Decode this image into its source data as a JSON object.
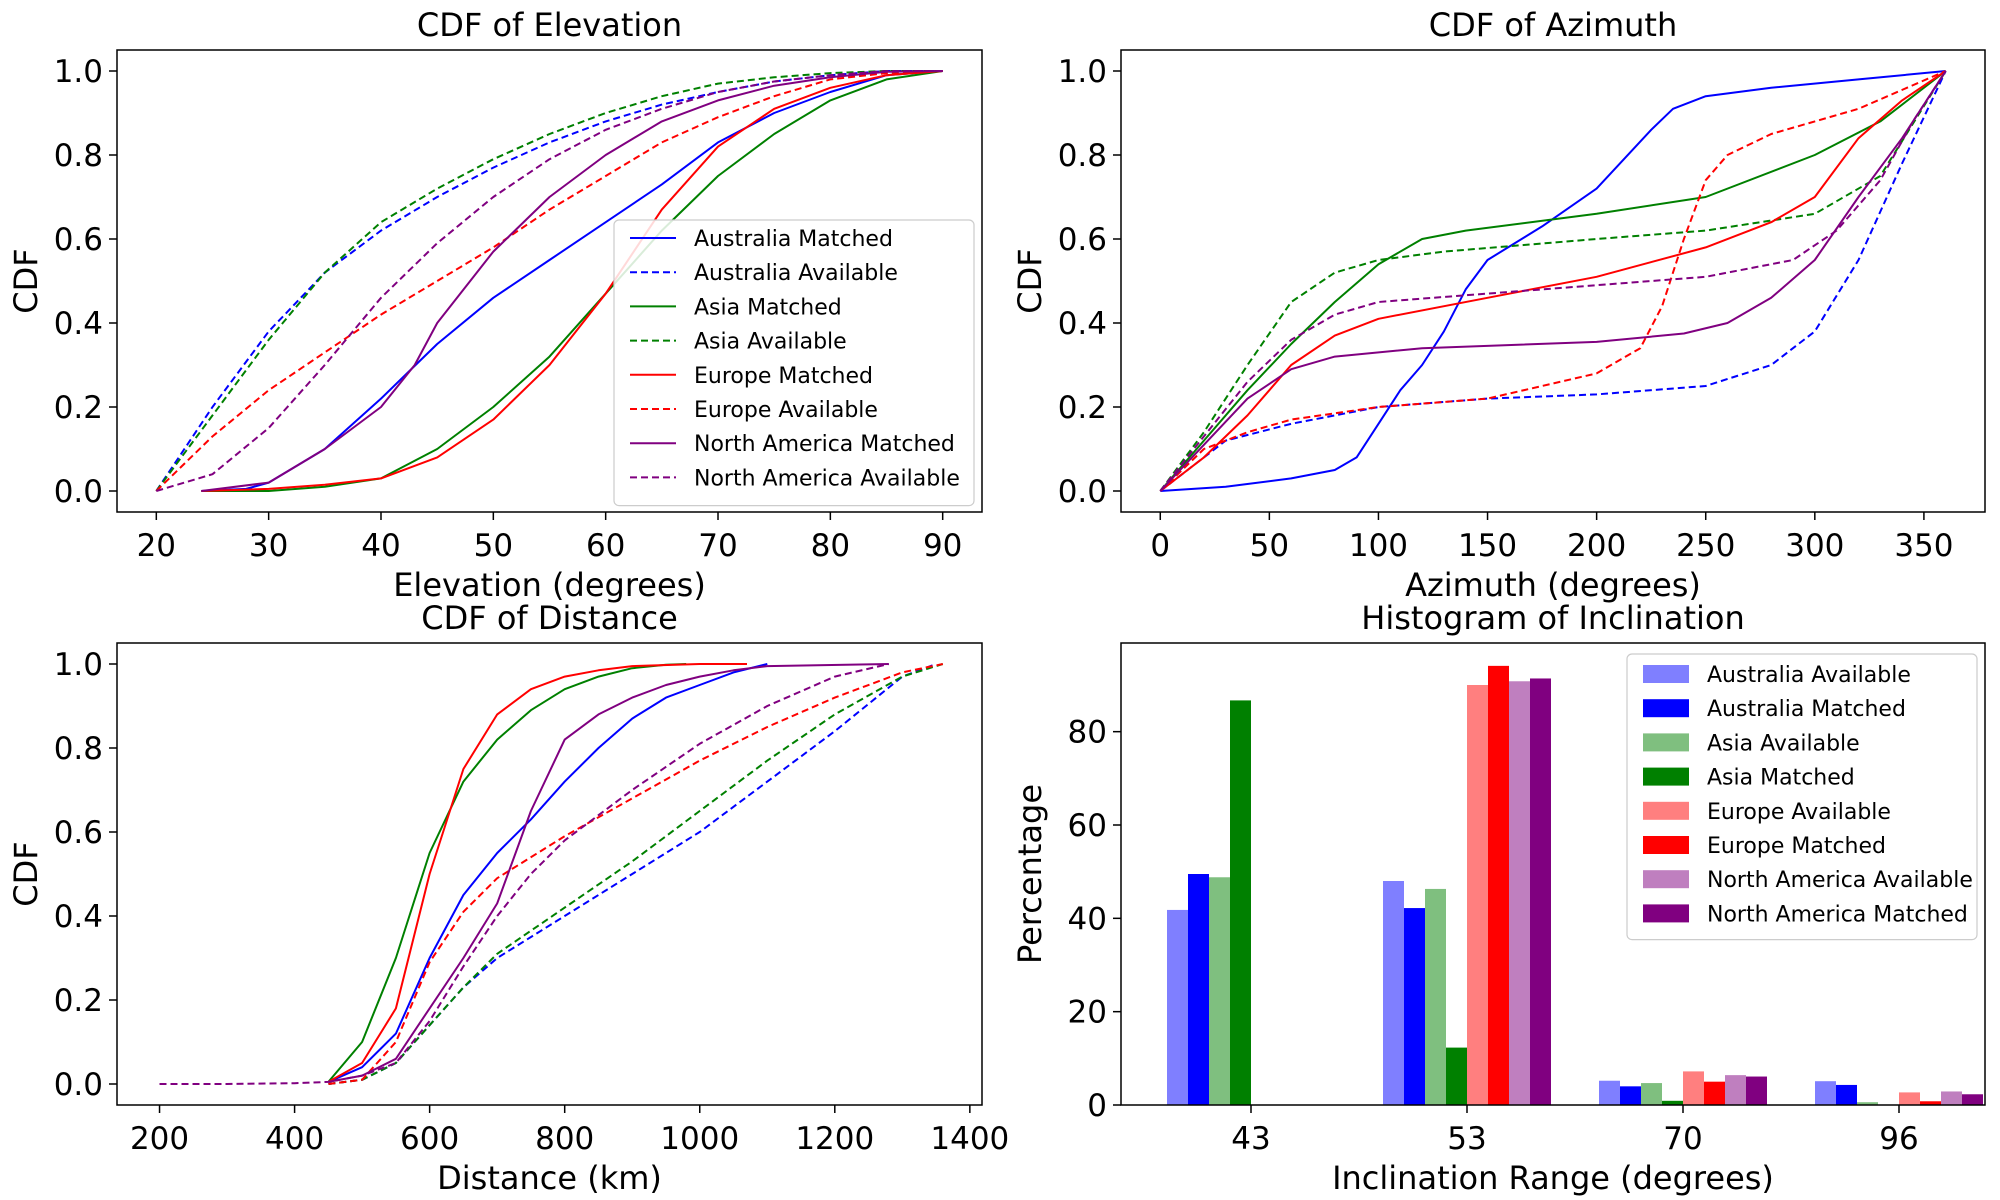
{
  "colors": {
    "Australia": "#0000ff",
    "Asia": "#008000",
    "Europe": "#ff0000",
    "North America": "#800080"
  },
  "chart_data": [
    {
      "type": "line",
      "title": "CDF of Elevation",
      "xlabel": "Elevation (degrees)",
      "ylabel": "CDF",
      "xlim": [
        16.5,
        93.5
      ],
      "ylim": [
        -0.05,
        1.05
      ],
      "xticks": [
        20,
        30,
        40,
        50,
        60,
        70,
        80,
        90
      ],
      "yticks": [
        0.0,
        0.2,
        0.4,
        0.6,
        0.8,
        1.0
      ],
      "legend": "lower-right",
      "series": [
        {
          "name": "Australia Matched",
          "region": "Australia",
          "style": "solid",
          "x": [
            24,
            28,
            30,
            35,
            40,
            45,
            50,
            55,
            60,
            65,
            70,
            75,
            80,
            85,
            90
          ],
          "y": [
            0.0,
            0.005,
            0.02,
            0.1,
            0.22,
            0.35,
            0.46,
            0.55,
            0.64,
            0.73,
            0.83,
            0.9,
            0.95,
            0.99,
            1.0
          ]
        },
        {
          "name": "Australia Available",
          "region": "Australia",
          "style": "dashed",
          "x": [
            20,
            25,
            30,
            35,
            40,
            45,
            50,
            55,
            60,
            65,
            70,
            75,
            80,
            85,
            90
          ],
          "y": [
            0.0,
            0.2,
            0.38,
            0.52,
            0.62,
            0.7,
            0.77,
            0.83,
            0.88,
            0.92,
            0.95,
            0.975,
            0.99,
            1.0,
            1.0
          ]
        },
        {
          "name": "Asia Matched",
          "region": "Asia",
          "style": "solid",
          "x": [
            24,
            30,
            35,
            40,
            45,
            50,
            55,
            60,
            65,
            70,
            75,
            80,
            85,
            90
          ],
          "y": [
            0.0,
            0.0,
            0.01,
            0.03,
            0.1,
            0.2,
            0.32,
            0.47,
            0.62,
            0.75,
            0.85,
            0.93,
            0.98,
            1.0
          ]
        },
        {
          "name": "Asia Available",
          "region": "Asia",
          "style": "dashed",
          "x": [
            20,
            25,
            30,
            35,
            40,
            45,
            50,
            55,
            60,
            65,
            70,
            75,
            80,
            85,
            90
          ],
          "y": [
            0.0,
            0.18,
            0.36,
            0.52,
            0.64,
            0.72,
            0.79,
            0.85,
            0.9,
            0.94,
            0.97,
            0.985,
            0.995,
            1.0,
            1.0
          ]
        },
        {
          "name": "Europe Matched",
          "region": "Europe",
          "style": "solid",
          "x": [
            24,
            30,
            35,
            40,
            45,
            50,
            55,
            60,
            65,
            70,
            75,
            80,
            85,
            90
          ],
          "y": [
            0.0,
            0.005,
            0.015,
            0.03,
            0.08,
            0.17,
            0.3,
            0.47,
            0.67,
            0.82,
            0.91,
            0.96,
            0.99,
            1.0
          ]
        },
        {
          "name": "Europe Available",
          "region": "Europe",
          "style": "dashed",
          "x": [
            20,
            25,
            30,
            35,
            40,
            45,
            50,
            55,
            60,
            65,
            70,
            75,
            80,
            85,
            90
          ],
          "y": [
            0.0,
            0.13,
            0.24,
            0.33,
            0.42,
            0.5,
            0.58,
            0.67,
            0.75,
            0.83,
            0.89,
            0.94,
            0.98,
            0.995,
            1.0
          ]
        },
        {
          "name": "North America Matched",
          "region": "North America",
          "style": "solid",
          "x": [
            24,
            30,
            35,
            40,
            43,
            45,
            50,
            55,
            60,
            65,
            70,
            75,
            80,
            85,
            90
          ],
          "y": [
            0.0,
            0.02,
            0.1,
            0.2,
            0.3,
            0.4,
            0.57,
            0.7,
            0.8,
            0.88,
            0.93,
            0.965,
            0.985,
            0.998,
            1.0
          ]
        },
        {
          "name": "North America Available",
          "region": "North America",
          "style": "dashed",
          "x": [
            20,
            25,
            30,
            35,
            40,
            45,
            50,
            55,
            60,
            65,
            70,
            75,
            80,
            85,
            90
          ],
          "y": [
            0.0,
            0.04,
            0.15,
            0.3,
            0.46,
            0.59,
            0.7,
            0.79,
            0.86,
            0.91,
            0.95,
            0.975,
            0.99,
            1.0,
            1.0
          ]
        }
      ]
    },
    {
      "type": "line",
      "title": "CDF of Azimuth",
      "xlabel": "Azimuth (degrees)",
      "ylabel": "CDF",
      "xlim": [
        -18,
        378
      ],
      "ylim": [
        -0.05,
        1.05
      ],
      "xticks": [
        0,
        50,
        100,
        150,
        200,
        250,
        300,
        350
      ],
      "yticks": [
        0.0,
        0.2,
        0.4,
        0.6,
        0.8,
        1.0
      ],
      "legend": "none",
      "series": [
        {
          "name": "Australia Matched",
          "region": "Australia",
          "style": "solid",
          "x": [
            0,
            30,
            60,
            80,
            90,
            100,
            110,
            120,
            130,
            140,
            150,
            175,
            200,
            225,
            235,
            250,
            280,
            320,
            360
          ],
          "y": [
            0.0,
            0.01,
            0.03,
            0.05,
            0.08,
            0.16,
            0.24,
            0.3,
            0.38,
            0.48,
            0.55,
            0.63,
            0.72,
            0.86,
            0.91,
            0.94,
            0.96,
            0.98,
            1.0
          ]
        },
        {
          "name": "Australia Available",
          "region": "Australia",
          "style": "dashed",
          "x": [
            0,
            30,
            60,
            100,
            150,
            200,
            250,
            280,
            300,
            320,
            340,
            360
          ],
          "y": [
            0.0,
            0.12,
            0.16,
            0.2,
            0.22,
            0.23,
            0.25,
            0.3,
            0.38,
            0.55,
            0.78,
            1.0
          ]
        },
        {
          "name": "Asia Matched",
          "region": "Asia",
          "style": "solid",
          "x": [
            0,
            20,
            40,
            60,
            80,
            100,
            120,
            140,
            200,
            250,
            300,
            330,
            360
          ],
          "y": [
            0.0,
            0.12,
            0.24,
            0.35,
            0.45,
            0.54,
            0.6,
            0.62,
            0.66,
            0.7,
            0.8,
            0.88,
            1.0
          ]
        },
        {
          "name": "Asia Available",
          "region": "Asia",
          "style": "dashed",
          "x": [
            0,
            20,
            40,
            60,
            80,
            100,
            130,
            200,
            250,
            300,
            330,
            360
          ],
          "y": [
            0.0,
            0.14,
            0.3,
            0.45,
            0.52,
            0.55,
            0.57,
            0.6,
            0.62,
            0.66,
            0.75,
            1.0
          ]
        },
        {
          "name": "Europe Matched",
          "region": "Europe",
          "style": "solid",
          "x": [
            0,
            20,
            40,
            60,
            80,
            100,
            150,
            200,
            250,
            280,
            300,
            320,
            340,
            360
          ],
          "y": [
            0.0,
            0.08,
            0.18,
            0.3,
            0.37,
            0.41,
            0.46,
            0.51,
            0.58,
            0.64,
            0.7,
            0.84,
            0.93,
            1.0
          ]
        },
        {
          "name": "Europe Available",
          "region": "Europe",
          "style": "dashed",
          "x": [
            0,
            20,
            40,
            60,
            100,
            150,
            200,
            220,
            230,
            240,
            250,
            260,
            280,
            320,
            360
          ],
          "y": [
            0.0,
            0.1,
            0.14,
            0.17,
            0.2,
            0.22,
            0.28,
            0.34,
            0.44,
            0.6,
            0.74,
            0.8,
            0.85,
            0.91,
            1.0
          ]
        },
        {
          "name": "North America Matched",
          "region": "North America",
          "style": "solid",
          "x": [
            0,
            20,
            40,
            60,
            80,
            120,
            200,
            240,
            260,
            280,
            300,
            320,
            340,
            360
          ],
          "y": [
            0.0,
            0.11,
            0.22,
            0.29,
            0.32,
            0.34,
            0.355,
            0.375,
            0.4,
            0.46,
            0.55,
            0.7,
            0.84,
            1.0
          ]
        },
        {
          "name": "North America Available",
          "region": "North America",
          "style": "dashed",
          "x": [
            0,
            20,
            40,
            60,
            80,
            100,
            150,
            200,
            250,
            290,
            310,
            330,
            345,
            360
          ],
          "y": [
            0.0,
            0.13,
            0.26,
            0.36,
            0.42,
            0.45,
            0.47,
            0.49,
            0.51,
            0.55,
            0.62,
            0.74,
            0.88,
            1.0
          ]
        }
      ]
    },
    {
      "type": "line",
      "title": "CDF of Distance",
      "xlabel": "Distance (km)",
      "ylabel": "CDF",
      "xlim": [
        137,
        1418
      ],
      "ylim": [
        -0.05,
        1.05
      ],
      "xticks": [
        200,
        400,
        600,
        800,
        1000,
        1200,
        1400
      ],
      "yticks": [
        0.0,
        0.2,
        0.4,
        0.6,
        0.8,
        1.0
      ],
      "legend": "none",
      "series": [
        {
          "name": "Australia Matched",
          "region": "Australia",
          "style": "solid",
          "x": [
            450,
            500,
            550,
            600,
            650,
            700,
            750,
            800,
            850,
            900,
            950,
            1000,
            1050,
            1100
          ],
          "y": [
            0.005,
            0.04,
            0.12,
            0.3,
            0.45,
            0.55,
            0.63,
            0.72,
            0.8,
            0.87,
            0.92,
            0.95,
            0.98,
            1.0
          ]
        },
        {
          "name": "Australia Available",
          "region": "Australia",
          "style": "dashed",
          "x": [
            450,
            500,
            550,
            600,
            650,
            700,
            800,
            900,
            1000,
            1100,
            1200,
            1300,
            1350
          ],
          "y": [
            0.0,
            0.01,
            0.05,
            0.14,
            0.23,
            0.3,
            0.4,
            0.5,
            0.6,
            0.72,
            0.84,
            0.97,
            1.0
          ]
        },
        {
          "name": "Asia Matched",
          "region": "Asia",
          "style": "solid",
          "x": [
            450,
            500,
            550,
            600,
            650,
            700,
            750,
            800,
            850,
            900,
            950,
            980
          ],
          "y": [
            0.005,
            0.1,
            0.3,
            0.55,
            0.72,
            0.82,
            0.89,
            0.94,
            0.97,
            0.99,
            0.998,
            1.0
          ]
        },
        {
          "name": "Asia Available",
          "region": "Asia",
          "style": "dashed",
          "x": [
            450,
            500,
            550,
            600,
            650,
            700,
            800,
            900,
            1000,
            1100,
            1200,
            1300,
            1360
          ],
          "y": [
            0.0,
            0.01,
            0.05,
            0.14,
            0.23,
            0.31,
            0.42,
            0.53,
            0.65,
            0.77,
            0.88,
            0.97,
            1.0
          ]
        },
        {
          "name": "Europe Matched",
          "region": "Europe",
          "style": "solid",
          "x": [
            450,
            500,
            550,
            600,
            650,
            700,
            750,
            800,
            850,
            900,
            1000,
            1070
          ],
          "y": [
            0.005,
            0.05,
            0.18,
            0.5,
            0.75,
            0.88,
            0.94,
            0.97,
            0.985,
            0.995,
            1.0,
            1.0
          ]
        },
        {
          "name": "Europe Available",
          "region": "Europe",
          "style": "dashed",
          "x": [
            450,
            500,
            550,
            600,
            650,
            700,
            800,
            900,
            1000,
            1100,
            1200,
            1300,
            1360
          ],
          "y": [
            0.0,
            0.01,
            0.1,
            0.29,
            0.41,
            0.49,
            0.59,
            0.68,
            0.77,
            0.85,
            0.92,
            0.98,
            1.0
          ]
        },
        {
          "name": "North America Matched",
          "region": "North America",
          "style": "solid",
          "x": [
            450,
            500,
            550,
            600,
            650,
            700,
            750,
            800,
            850,
            900,
            950,
            1000,
            1050,
            1100,
            1280
          ],
          "y": [
            0.005,
            0.02,
            0.06,
            0.18,
            0.3,
            0.43,
            0.65,
            0.82,
            0.88,
            0.92,
            0.95,
            0.97,
            0.985,
            0.995,
            1.0
          ]
        },
        {
          "name": "North America Available",
          "region": "North America",
          "style": "dashed",
          "x": [
            200,
            300,
            400,
            450,
            500,
            550,
            600,
            650,
            700,
            750,
            800,
            900,
            1000,
            1100,
            1200,
            1280
          ],
          "y": [
            0.0,
            0.0,
            0.002,
            0.005,
            0.02,
            0.05,
            0.15,
            0.28,
            0.4,
            0.5,
            0.58,
            0.7,
            0.81,
            0.9,
            0.97,
            1.0
          ]
        }
      ]
    },
    {
      "type": "bar",
      "title": "Histogram of Inclination",
      "xlabel": "Inclination Range (degrees)",
      "ylabel": "Percentage",
      "categories": [
        "43",
        "53",
        "70",
        "96"
      ],
      "ylim": [
        0,
        99
      ],
      "yticks": [
        0,
        20,
        40,
        60,
        80
      ],
      "legend": "top-right",
      "series": [
        {
          "name": "Australia Available",
          "region": "Australia",
          "alpha": 0.5,
          "values": [
            41.8,
            48.0,
            5.2,
            5.1
          ]
        },
        {
          "name": "Australia Matched",
          "region": "Australia",
          "alpha": 1.0,
          "values": [
            49.5,
            42.2,
            4.0,
            4.3
          ]
        },
        {
          "name": "Asia Available",
          "region": "Asia",
          "alpha": 0.5,
          "values": [
            48.8,
            46.3,
            4.7,
            0.6
          ]
        },
        {
          "name": "Asia Matched",
          "region": "Asia",
          "alpha": 1.0,
          "values": [
            86.7,
            12.3,
            0.9,
            0.0
          ]
        },
        {
          "name": "Europe Available",
          "region": "Europe",
          "alpha": 0.5,
          "values": [
            0.0,
            90.0,
            7.2,
            2.7
          ]
        },
        {
          "name": "Europe Matched",
          "region": "Europe",
          "alpha": 1.0,
          "values": [
            0.0,
            94.1,
            5.0,
            0.8
          ]
        },
        {
          "name": "North America Available",
          "region": "North America",
          "alpha": 0.5,
          "values": [
            0.0,
            90.8,
            6.4,
            2.9
          ]
        },
        {
          "name": "North America Matched",
          "region": "North America",
          "alpha": 1.0,
          "values": [
            0.0,
            91.4,
            6.1,
            2.3
          ]
        }
      ]
    }
  ]
}
